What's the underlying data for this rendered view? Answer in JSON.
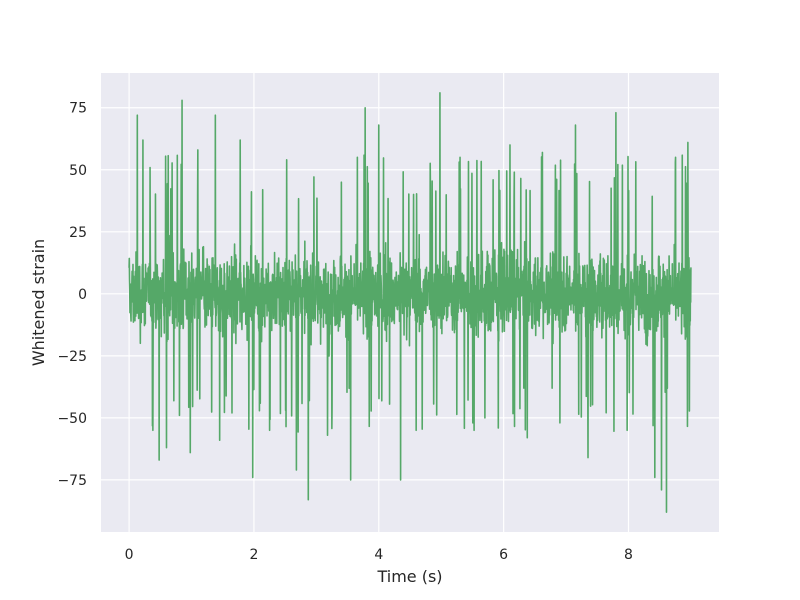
{
  "chart_data": {
    "type": "line",
    "title": "",
    "xlabel": "Time (s)",
    "ylabel": "Whitened strain",
    "xlim": [
      -0.45,
      9.45
    ],
    "ylim": [
      -96,
      89
    ],
    "x_ticks": [
      0,
      2,
      4,
      6,
      8
    ],
    "y_ticks": [
      -75,
      -50,
      -25,
      0,
      25,
      50,
      75
    ],
    "grid": true,
    "legend": "none",
    "colors": {
      "series": "#55a868",
      "plot_background": "#eaeaf2",
      "grid": "#ffffff"
    },
    "series": [
      {
        "x_start": 0.0,
        "x_end": 9.0,
        "band": [
          -35,
          35
        ],
        "spike_envelope": [
          -88,
          81
        ],
        "peaks": [
          [
            0.13,
            72
          ],
          [
            0.22,
            62
          ],
          [
            0.38,
            -55
          ],
          [
            0.48,
            -67
          ],
          [
            0.6,
            -62
          ],
          [
            0.85,
            78
          ],
          [
            0.98,
            -64
          ],
          [
            1.1,
            58
          ],
          [
            1.38,
            72
          ],
          [
            1.45,
            -59
          ],
          [
            1.65,
            -48
          ],
          [
            1.78,
            62
          ],
          [
            1.98,
            -74
          ],
          [
            2.25,
            -55
          ],
          [
            2.68,
            -71
          ],
          [
            2.87,
            -83
          ],
          [
            3.18,
            -57
          ],
          [
            3.4,
            45
          ],
          [
            3.55,
            -75
          ],
          [
            3.78,
            75
          ],
          [
            4.0,
            68
          ],
          [
            4.35,
            -75
          ],
          [
            4.6,
            -55
          ],
          [
            4.98,
            81
          ],
          [
            5.3,
            55
          ],
          [
            5.7,
            -50
          ],
          [
            6.1,
            60
          ],
          [
            6.38,
            -58
          ],
          [
            6.62,
            57
          ],
          [
            6.9,
            -52
          ],
          [
            7.15,
            68
          ],
          [
            7.35,
            -66
          ],
          [
            7.8,
            73
          ],
          [
            7.98,
            -55
          ],
          [
            8.42,
            -74
          ],
          [
            8.53,
            -79
          ],
          [
            8.61,
            -88
          ],
          [
            8.75,
            53
          ],
          [
            8.95,
            61
          ]
        ]
      }
    ]
  }
}
